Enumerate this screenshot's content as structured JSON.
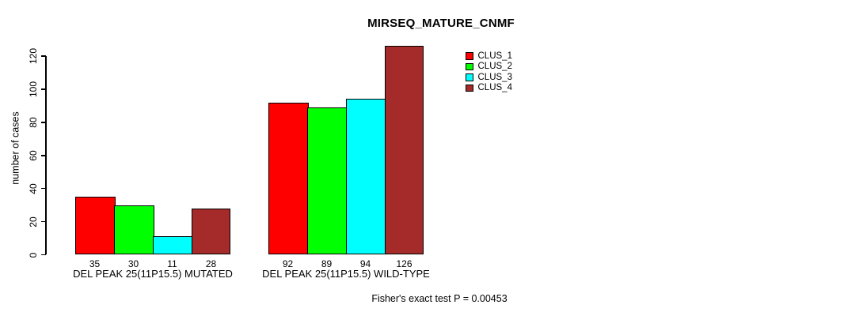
{
  "chart_data": {
    "type": "bar",
    "title": "MIRSEQ_MATURE_CNMF",
    "ylabel": "number of cases",
    "xlabel": "",
    "categories": [
      "DEL PEAK 25(11P15.5) MUTATED",
      "DEL PEAK 25(11P15.5) WILD-TYPE"
    ],
    "series": [
      {
        "name": "CLUS_1",
        "color": "#FF0000",
        "values": [
          35,
          92
        ]
      },
      {
        "name": "CLUS_2",
        "color": "#00FF00",
        "values": [
          30,
          89
        ]
      },
      {
        "name": "CLUS_3",
        "color": "#00FFFF",
        "values": [
          11,
          94
        ]
      },
      {
        "name": "CLUS_4",
        "color": "#A52A2A",
        "values": [
          28,
          126
        ]
      }
    ],
    "y_ticks": [
      0,
      20,
      40,
      60,
      80,
      100,
      120
    ],
    "ylim": [
      0,
      130
    ],
    "grid": false,
    "bar_value_labels_shown": true,
    "legend_position": "top-right",
    "footnote": "Fisher's exact test P = 0.00453"
  }
}
